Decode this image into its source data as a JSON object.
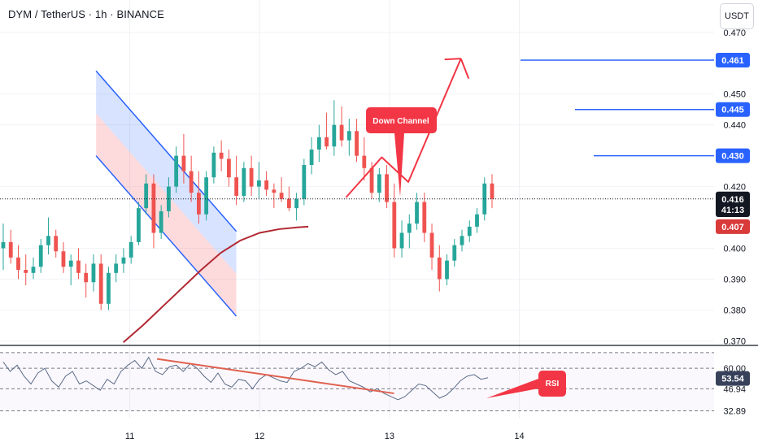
{
  "header": {
    "title": "DYM / TetherUS · 1h · BINANCE"
  },
  "toolbar": {
    "unit_label": "USDT"
  },
  "price_axis": {
    "ticks": [
      "0.470",
      "0.450",
      "0.440",
      "0.420",
      "0.400",
      "0.390",
      "0.380",
      "0.370"
    ],
    "tick_values": [
      0.47,
      0.45,
      0.44,
      0.42,
      0.4,
      0.39,
      0.38,
      0.37
    ],
    "badges": [
      {
        "label": "0.461",
        "value": 0.461,
        "color": "#2962ff"
      },
      {
        "label": "0.445",
        "value": 0.445,
        "color": "#2962ff"
      },
      {
        "label": "0.430",
        "value": 0.43,
        "color": "#2962ff"
      },
      {
        "label": "0.416",
        "value": 0.416,
        "color": "#131722"
      },
      {
        "label": "41:13",
        "value": 0.4125,
        "color": "#131722"
      },
      {
        "label": "0.407",
        "value": 0.407,
        "color": "#d93a3a"
      }
    ]
  },
  "rsi_axis": {
    "ticks": [
      "60.00",
      "46.94",
      "32.89"
    ],
    "tick_values": [
      60.0,
      46.94,
      32.89
    ],
    "badge": {
      "label": "53.54",
      "value": 53.54,
      "color": "#37415a"
    }
  },
  "time_axis": {
    "labels": [
      "11",
      "12",
      "13",
      "14"
    ]
  },
  "annotations": {
    "channel_label": "Down Channel",
    "rsi_label": "RSI"
  },
  "chart_data": {
    "type": "candlestick",
    "title": "DYM / TetherUS · 1h · BINANCE",
    "unit": "USDT",
    "y_range": [
      0.3685,
      0.4805
    ],
    "x_range": [
      0,
      110
    ],
    "x_tick_labels": [
      {
        "label": "11",
        "x": 20
      },
      {
        "label": "12",
        "x": 40
      },
      {
        "label": "13",
        "x": 60
      },
      {
        "label": "14",
        "x": 80
      }
    ],
    "current_price": 0.416,
    "moving_average_last": 0.407,
    "targets": [
      0.43,
      0.445,
      0.461
    ],
    "candles_ohlc": [
      [
        0.4,
        0.408,
        0.393,
        0.402
      ],
      [
        0.402,
        0.406,
        0.395,
        0.397
      ],
      [
        0.397,
        0.401,
        0.39,
        0.393
      ],
      [
        0.393,
        0.398,
        0.388,
        0.392
      ],
      [
        0.392,
        0.397,
        0.39,
        0.394
      ],
      [
        0.394,
        0.403,
        0.392,
        0.401
      ],
      [
        0.401,
        0.41,
        0.398,
        0.404
      ],
      [
        0.404,
        0.406,
        0.397,
        0.399
      ],
      [
        0.399,
        0.402,
        0.392,
        0.394
      ],
      [
        0.394,
        0.398,
        0.388,
        0.396
      ],
      [
        0.396,
        0.4,
        0.39,
        0.392
      ],
      [
        0.392,
        0.395,
        0.384,
        0.389
      ],
      [
        0.389,
        0.398,
        0.386,
        0.395
      ],
      [
        0.395,
        0.398,
        0.38,
        0.382
      ],
      [
        0.382,
        0.394,
        0.38,
        0.392
      ],
      [
        0.392,
        0.398,
        0.389,
        0.395
      ],
      [
        0.395,
        0.4,
        0.392,
        0.397
      ],
      [
        0.397,
        0.404,
        0.395,
        0.402
      ],
      [
        0.402,
        0.415,
        0.401,
        0.413
      ],
      [
        0.413,
        0.424,
        0.411,
        0.421
      ],
      [
        0.421,
        0.424,
        0.4,
        0.405
      ],
      [
        0.405,
        0.414,
        0.403,
        0.412
      ],
      [
        0.412,
        0.423,
        0.41,
        0.42
      ],
      [
        0.42,
        0.433,
        0.418,
        0.43
      ],
      [
        0.43,
        0.437,
        0.421,
        0.425
      ],
      [
        0.425,
        0.43,
        0.415,
        0.418
      ],
      [
        0.418,
        0.425,
        0.408,
        0.411
      ],
      [
        0.411,
        0.425,
        0.409,
        0.423
      ],
      [
        0.423,
        0.433,
        0.421,
        0.431
      ],
      [
        0.431,
        0.435,
        0.425,
        0.429
      ],
      [
        0.429,
        0.432,
        0.42,
        0.423
      ],
      [
        0.423,
        0.43,
        0.414,
        0.417
      ],
      [
        0.417,
        0.428,
        0.415,
        0.426
      ],
      [
        0.426,
        0.43,
        0.417,
        0.42
      ],
      [
        0.42,
        0.428,
        0.416,
        0.422
      ],
      [
        0.422,
        0.425,
        0.417,
        0.419
      ],
      [
        0.419,
        0.421,
        0.413,
        0.418
      ],
      [
        0.418,
        0.423,
        0.415,
        0.416
      ],
      [
        0.416,
        0.42,
        0.412,
        0.413
      ],
      [
        0.413,
        0.418,
        0.409,
        0.416
      ],
      [
        0.416,
        0.429,
        0.414,
        0.427
      ],
      [
        0.427,
        0.436,
        0.424,
        0.432
      ],
      [
        0.432,
        0.44,
        0.428,
        0.436
      ],
      [
        0.436,
        0.444,
        0.432,
        0.433
      ],
      [
        0.433,
        0.448,
        0.43,
        0.44
      ],
      [
        0.44,
        0.446,
        0.433,
        0.435
      ],
      [
        0.435,
        0.442,
        0.43,
        0.438
      ],
      [
        0.438,
        0.442,
        0.428,
        0.43
      ],
      [
        0.43,
        0.436,
        0.422,
        0.426
      ],
      [
        0.426,
        0.428,
        0.416,
        0.418
      ],
      [
        0.418,
        0.426,
        0.415,
        0.424
      ],
      [
        0.424,
        0.427,
        0.413,
        0.415
      ],
      [
        0.415,
        0.421,
        0.397,
        0.4
      ],
      [
        0.4,
        0.409,
        0.397,
        0.405
      ],
      [
        0.405,
        0.411,
        0.4,
        0.408
      ],
      [
        0.408,
        0.418,
        0.406,
        0.415
      ],
      [
        0.415,
        0.418,
        0.402,
        0.405
      ],
      [
        0.405,
        0.408,
        0.393,
        0.397
      ],
      [
        0.397,
        0.401,
        0.386,
        0.39
      ],
      [
        0.39,
        0.398,
        0.388,
        0.396
      ],
      [
        0.396,
        0.403,
        0.394,
        0.401
      ],
      [
        0.401,
        0.406,
        0.399,
        0.404
      ],
      [
        0.404,
        0.409,
        0.402,
        0.407
      ],
      [
        0.407,
        0.413,
        0.405,
        0.411
      ],
      [
        0.411,
        0.423,
        0.409,
        0.421
      ],
      [
        0.421,
        0.424,
        0.413,
        0.416
      ]
    ],
    "moving_average": [
      {
        "x": 19,
        "y": 0.3695
      },
      {
        "x": 22,
        "y": 0.375
      },
      {
        "x": 25,
        "y": 0.381
      },
      {
        "x": 28,
        "y": 0.387
      },
      {
        "x": 31,
        "y": 0.393
      },
      {
        "x": 34,
        "y": 0.3985
      },
      {
        "x": 37,
        "y": 0.4025
      },
      {
        "x": 40,
        "y": 0.405
      },
      {
        "x": 43,
        "y": 0.4062
      },
      {
        "x": 46,
        "y": 0.4068
      },
      {
        "x": 47.5,
        "y": 0.407
      }
    ],
    "down_channel": {
      "upper": [
        {
          "x": 14.8,
          "y": 0.4575
        },
        {
          "x": 36.4,
          "y": 0.4055
        }
      ],
      "lower": [
        {
          "x": 14.8,
          "y": 0.43
        },
        {
          "x": 36.4,
          "y": 0.378
        }
      ]
    },
    "projection": [
      {
        "x": 53.3,
        "y": 0.4165
      },
      {
        "x": 58.8,
        "y": 0.4295
      },
      {
        "x": 62.9,
        "y": 0.4215
      },
      {
        "x": 71,
        "y": 0.4615
      },
      {
        "x": 72.2,
        "y": 0.455
      }
    ],
    "rsi": {
      "y_range": [
        28,
        72
      ],
      "levels": [
        70,
        60,
        46.94,
        32.89
      ],
      "last": 53.54,
      "values": [
        64,
        58,
        62,
        55,
        50,
        57,
        60,
        52,
        48,
        55,
        58,
        50,
        52,
        49,
        46,
        53,
        50,
        58,
        62,
        65,
        60,
        67,
        58,
        56,
        61,
        62,
        58,
        63,
        60,
        55,
        51,
        57,
        50,
        48,
        53,
        52,
        47,
        53,
        56,
        54,
        52,
        51,
        58,
        60,
        63,
        61,
        64,
        59,
        56,
        58,
        52,
        50,
        48,
        45,
        47,
        44,
        42,
        40,
        42,
        46,
        50,
        49,
        45,
        41,
        43,
        47,
        52,
        55,
        56,
        53,
        54
      ]
    },
    "rsi_trendline": [
      {
        "x": 24.2,
        "y": 66
      },
      {
        "x": 39.4,
        "y": 43.5
      }
    ]
  }
}
